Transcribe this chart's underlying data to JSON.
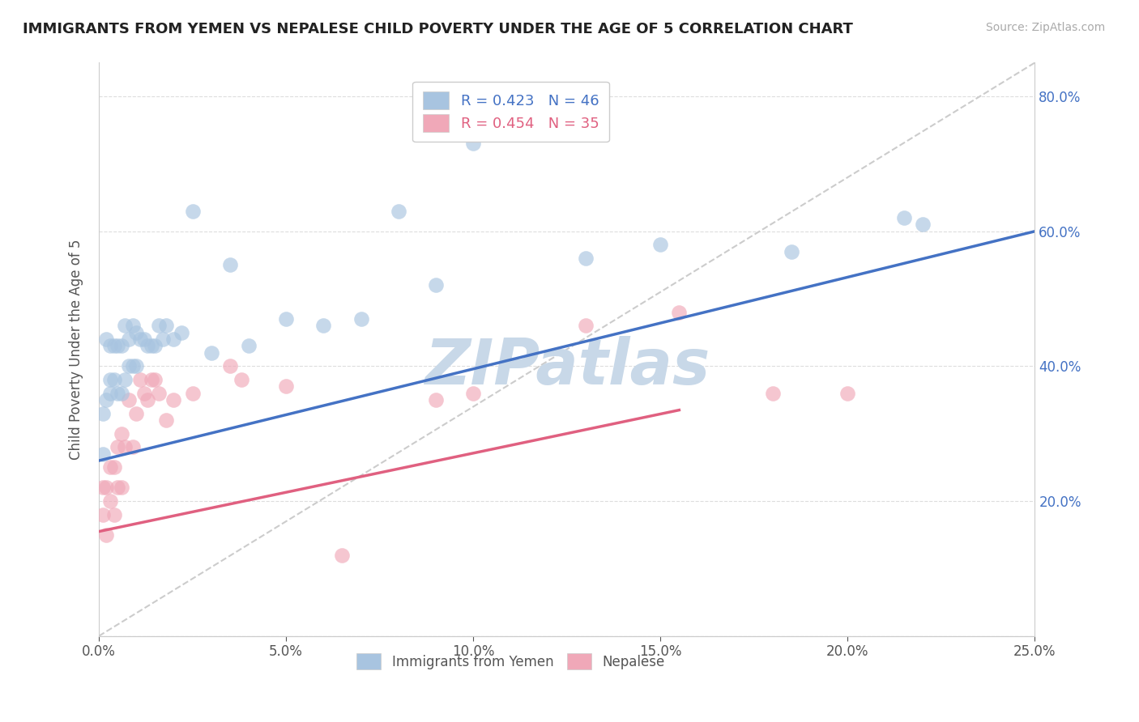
{
  "title": "IMMIGRANTS FROM YEMEN VS NEPALESE CHILD POVERTY UNDER THE AGE OF 5 CORRELATION CHART",
  "source": "Source: ZipAtlas.com",
  "ylabel": "Child Poverty Under the Age of 5",
  "xlim": [
    0.0,
    0.25
  ],
  "ylim": [
    0.0,
    0.85
  ],
  "xticks": [
    0.0,
    0.05,
    0.1,
    0.15,
    0.2,
    0.25
  ],
  "yticks": [
    0.0,
    0.2,
    0.4,
    0.6,
    0.8
  ],
  "ytick_labels_right": [
    "",
    "20.0%",
    "40.0%",
    "60.0%",
    "80.0%"
  ],
  "xtick_labels": [
    "0.0%",
    "5.0%",
    "10.0%",
    "15.0%",
    "20.0%",
    "25.0%"
  ],
  "legend1_label": "R = 0.423   N = 46",
  "legend2_label": "R = 0.454   N = 35",
  "legend_label1": "Immigrants from Yemen",
  "legend_label2": "Nepalese",
  "blue_color": "#a8c4e0",
  "pink_color": "#f0a8b8",
  "blue_line_color": "#4472c4",
  "pink_line_color": "#e06080",
  "watermark": "ZIPatlas",
  "watermark_color": "#c8d8e8",
  "blue_scatter_x": [
    0.001,
    0.001,
    0.002,
    0.002,
    0.003,
    0.003,
    0.003,
    0.004,
    0.004,
    0.005,
    0.005,
    0.006,
    0.006,
    0.007,
    0.007,
    0.008,
    0.008,
    0.009,
    0.009,
    0.01,
    0.01,
    0.011,
    0.012,
    0.013,
    0.014,
    0.015,
    0.016,
    0.017,
    0.018,
    0.02,
    0.022,
    0.025,
    0.03,
    0.035,
    0.04,
    0.05,
    0.06,
    0.07,
    0.08,
    0.09,
    0.1,
    0.13,
    0.15,
    0.185,
    0.215,
    0.22
  ],
  "blue_scatter_y": [
    0.27,
    0.33,
    0.44,
    0.35,
    0.38,
    0.43,
    0.36,
    0.43,
    0.38,
    0.43,
    0.36,
    0.43,
    0.36,
    0.46,
    0.38,
    0.44,
    0.4,
    0.46,
    0.4,
    0.4,
    0.45,
    0.44,
    0.44,
    0.43,
    0.43,
    0.43,
    0.46,
    0.44,
    0.46,
    0.44,
    0.45,
    0.63,
    0.42,
    0.55,
    0.43,
    0.47,
    0.46,
    0.47,
    0.63,
    0.52,
    0.73,
    0.56,
    0.58,
    0.57,
    0.62,
    0.61
  ],
  "pink_scatter_x": [
    0.001,
    0.001,
    0.002,
    0.002,
    0.003,
    0.003,
    0.004,
    0.004,
    0.005,
    0.005,
    0.006,
    0.006,
    0.007,
    0.008,
    0.009,
    0.01,
    0.011,
    0.012,
    0.013,
    0.014,
    0.015,
    0.016,
    0.018,
    0.02,
    0.025,
    0.035,
    0.038,
    0.05,
    0.065,
    0.09,
    0.1,
    0.13,
    0.155,
    0.18,
    0.2
  ],
  "pink_scatter_y": [
    0.18,
    0.22,
    0.15,
    0.22,
    0.2,
    0.25,
    0.18,
    0.25,
    0.22,
    0.28,
    0.22,
    0.3,
    0.28,
    0.35,
    0.28,
    0.33,
    0.38,
    0.36,
    0.35,
    0.38,
    0.38,
    0.36,
    0.32,
    0.35,
    0.36,
    0.4,
    0.38,
    0.37,
    0.12,
    0.35,
    0.36,
    0.46,
    0.48,
    0.36,
    0.36
  ],
  "blue_line_x0": 0.0,
  "blue_line_y0": 0.26,
  "blue_line_x1": 0.25,
  "blue_line_y1": 0.6,
  "pink_line_x0": 0.0,
  "pink_line_y0": 0.155,
  "pink_line_x1": 0.155,
  "pink_line_y1": 0.335
}
